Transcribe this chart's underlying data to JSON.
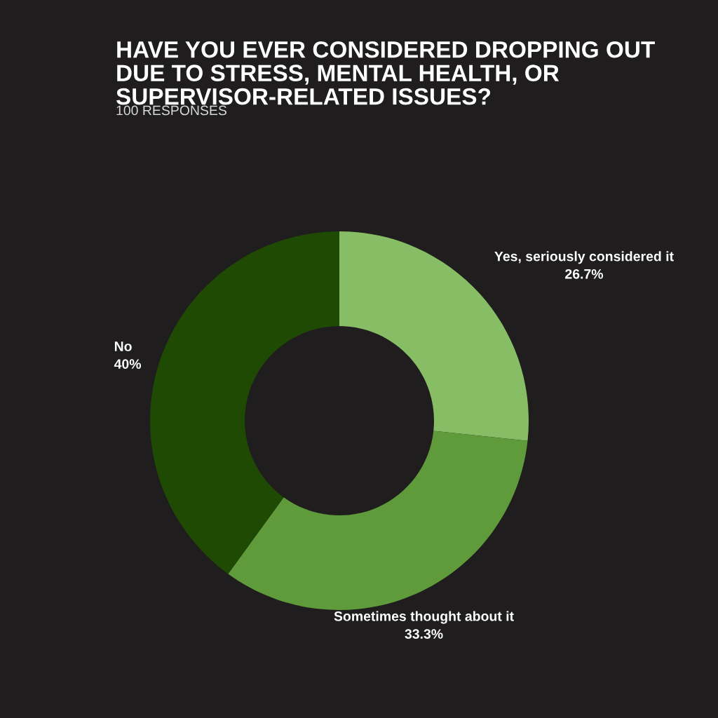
{
  "chart_data": {
    "type": "donut",
    "title": "HAVE YOU EVER CONSIDERED DROPPING OUT\nDUE TO STRESS, MENTAL HEALTH, OR\nSUPERVISOR-RELATED ISSUES?",
    "subtitle": "100 RESPONSES",
    "categories": [
      "Yes, seriously considered it",
      "Sometimes thought about it",
      "No"
    ],
    "values": [
      26.7,
      33.3,
      40
    ],
    "colors": [
      "#87bd65",
      "#5f9a3b",
      "#1f4a03"
    ],
    "value_labels": [
      "26.7%",
      "33.3%",
      "40%"
    ]
  }
}
